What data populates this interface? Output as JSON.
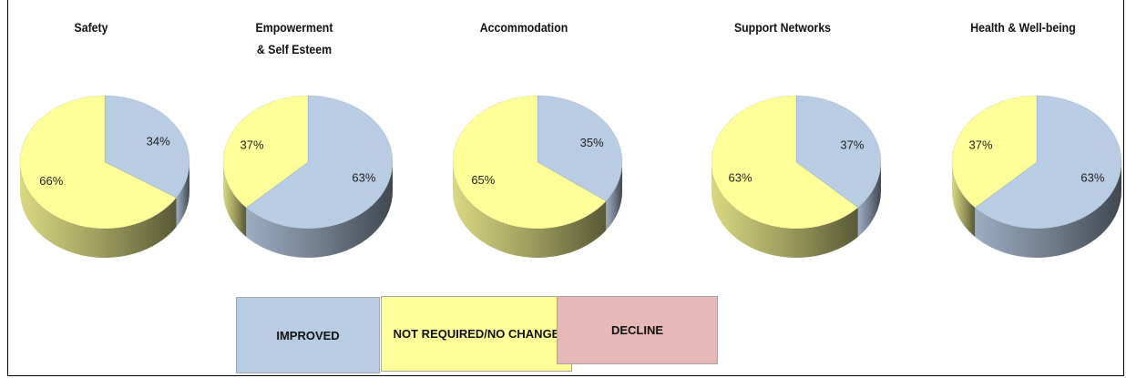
{
  "chart_data": [
    {
      "type": "pie",
      "title": "Safety",
      "values": [
        34,
        66
      ],
      "value_labels": [
        "34%",
        "66%"
      ]
    },
    {
      "type": "pie",
      "title": "Empowerment\n& Self Esteem",
      "values": [
        63,
        37
      ],
      "value_labels": [
        "63%",
        "37%"
      ]
    },
    {
      "type": "pie",
      "title": "Accommodation",
      "values": [
        35,
        65
      ],
      "value_labels": [
        "35%",
        "65%"
      ]
    },
    {
      "type": "pie",
      "title": "Support Networks",
      "values": [
        37,
        63
      ],
      "value_labels": [
        "37%",
        "63%"
      ]
    },
    {
      "type": "pie",
      "title": "Health & Well-being",
      "values": [
        63,
        37
      ],
      "value_labels": [
        "63%",
        "37%"
      ]
    }
  ],
  "legend": [
    {
      "name": "IMPROVED",
      "color": "#b8cce4"
    },
    {
      "name": "NOT REQUIRED/NO CHANGE",
      "color": "#ffff99"
    },
    {
      "name": "DECLINE",
      "color": "#e6b8b7"
    }
  ]
}
